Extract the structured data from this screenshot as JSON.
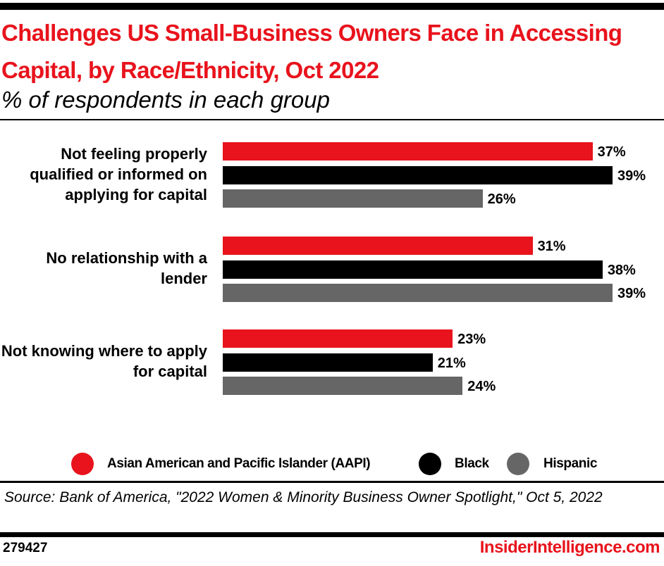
{
  "header": {
    "title": "Challenges US Small-Business Owners Face in Accessing Capital, by Race/Ethnicity, Oct 2022",
    "subtitle": "% of respondents in each group"
  },
  "chart_data": {
    "type": "bar",
    "orientation": "horizontal",
    "categories": [
      "Not feeling properly qualified or informed on applying for capital",
      "No relationship with a lender",
      "Not knowing where to apply for capital"
    ],
    "series": [
      {
        "name": "Asian American and Pacific Islander (AAPI)",
        "color": "#e8131c",
        "values": [
          37,
          31,
          23
        ]
      },
      {
        "name": "Black",
        "color": "#000000",
        "values": [
          39,
          38,
          21
        ]
      },
      {
        "name": "Hispanic",
        "color": "#666666",
        "values": [
          26,
          39,
          24
        ]
      }
    ],
    "value_suffix": "%",
    "xlim": [
      0,
      39
    ],
    "grid": false,
    "legend_position": "bottom"
  },
  "footer": {
    "source": "Source: Bank of America, \"2022 Women & Minority Business Owner Spotlight,\" Oct 5, 2022",
    "chart_id": "279427",
    "brand": "InsiderIntelligence.com"
  }
}
